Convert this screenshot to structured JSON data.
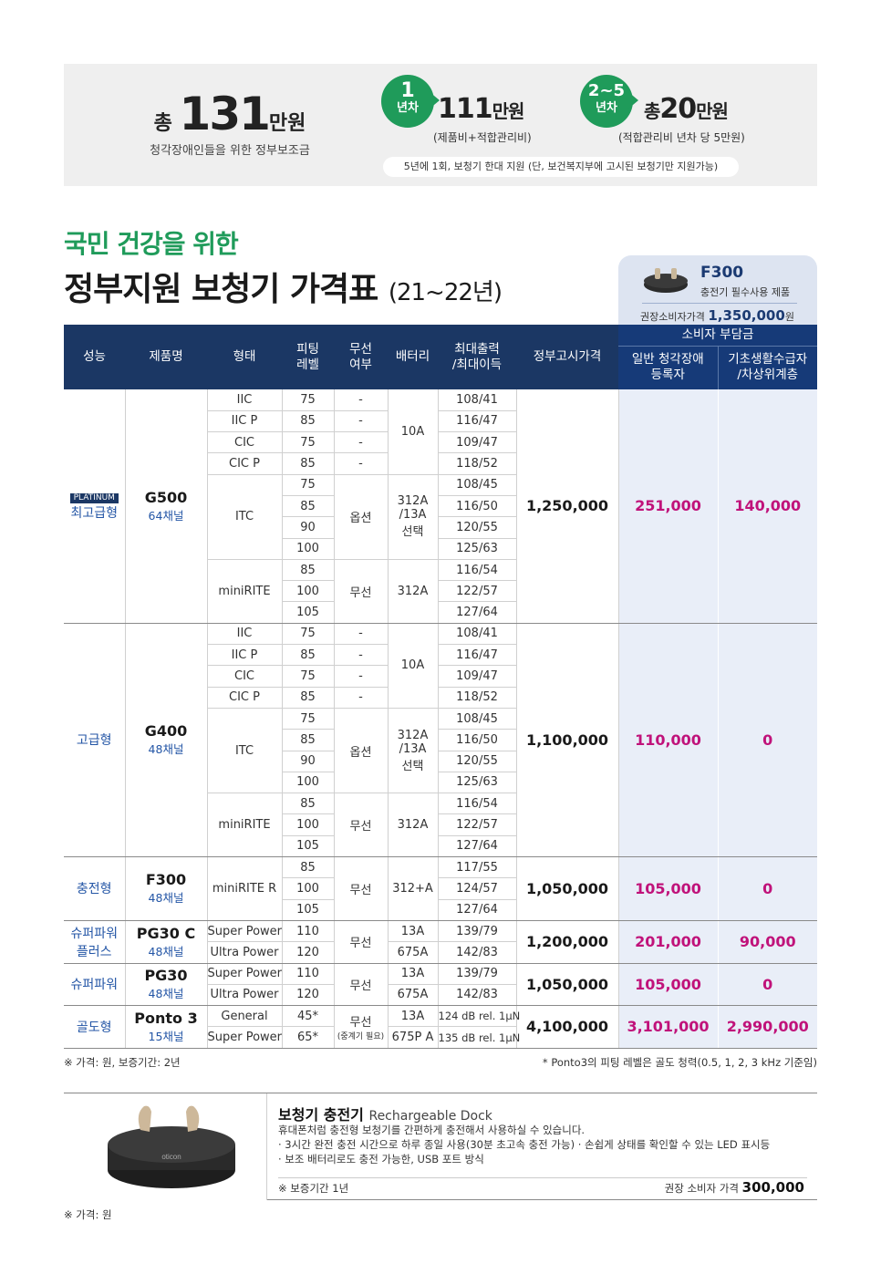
{
  "banner": {
    "total_prefix": "총",
    "total_num": "131",
    "total_unit": "만원",
    "total_sub": "청각장애인들을 위한 정부보조금",
    "y1_num": "1",
    "y1_label": "년차",
    "y1_amount": "111",
    "y1_unit": "만원",
    "y1_note": "(제품비+적합관리비)",
    "y2_num": "2~5",
    "y2_label": "년차",
    "y2_prefix": "총",
    "y2_amount": "20",
    "y2_unit": "만원",
    "y2_note": "(적합관리비 년차 당 5만원)",
    "pill": "5년에 1회, 보청기 한대 지원 (단, 보건복지부에 고시된 보청기만 지원가능)"
  },
  "title": {
    "line1": "국민 건강을 위한",
    "line2": "정부지원 보청기 가격표",
    "years": "(21~22년)"
  },
  "promo": {
    "name": "F300",
    "desc": "충전기 필수사용 제품",
    "price_label": "권장소비자가격",
    "price": "1,350,000",
    "price_unit": "원"
  },
  "table": {
    "headers": {
      "perf": "성능",
      "product": "제품명",
      "type": "형태",
      "fitting": "피팅\n레벨",
      "wireless": "무선\n여부",
      "battery": "배터리",
      "maxout": "최대출력\n/최대이득",
      "gov": "정부고시가격",
      "consumer": "소비자 부담금",
      "general": "일반 청각장애\n등록자",
      "basic": "기초생활수급자\n/차상위계층"
    },
    "g500": {
      "badge": "PLATINUM",
      "perf": "최고급형",
      "name": "G500",
      "channels": "64채널",
      "gov": "1,250,000",
      "general": "251,000",
      "basic": "140,000",
      "rows": [
        {
          "type": "IIC",
          "fit": "75",
          "wl": "-",
          "out": "108/41"
        },
        {
          "type": "IIC P",
          "fit": "85",
          "wl": "-",
          "out": "116/47"
        },
        {
          "type": "CIC",
          "fit": "75",
          "wl": "-",
          "out": "109/47"
        },
        {
          "type": "CIC P",
          "fit": "85",
          "wl": "-",
          "out": "118/52"
        },
        {
          "fit": "75",
          "out": "108/45"
        },
        {
          "fit": "85",
          "out": "116/50"
        },
        {
          "fit": "90",
          "out": "120/55"
        },
        {
          "fit": "100",
          "out": "125/63"
        },
        {
          "fit": "85",
          "out": "116/54"
        },
        {
          "fit": "100",
          "out": "122/57"
        },
        {
          "fit": "105",
          "out": "127/64"
        }
      ],
      "bat_10a": "10A",
      "itc": "ITC",
      "itc_wl": "옵션",
      "itc_bat": "312A\n/13A\n선택",
      "minirite": "miniRITE",
      "minirite_wl": "무선",
      "minirite_bat": "312A"
    },
    "g400": {
      "perf": "고급형",
      "name": "G400",
      "channels": "48채널",
      "gov": "1,100,000",
      "general": "110,000",
      "basic": "0",
      "rows": [
        {
          "type": "IIC",
          "fit": "75",
          "wl": "-",
          "out": "108/41"
        },
        {
          "type": "IIC P",
          "fit": "85",
          "wl": "-",
          "out": "116/47"
        },
        {
          "type": "CIC",
          "fit": "75",
          "wl": "-",
          "out": "109/47"
        },
        {
          "type": "CIC P",
          "fit": "85",
          "wl": "-",
          "out": "118/52"
        },
        {
          "fit": "75",
          "out": "108/45"
        },
        {
          "fit": "85",
          "out": "116/50"
        },
        {
          "fit": "90",
          "out": "120/55"
        },
        {
          "fit": "100",
          "out": "125/63"
        },
        {
          "fit": "85",
          "out": "116/54"
        },
        {
          "fit": "100",
          "out": "122/57"
        },
        {
          "fit": "105",
          "out": "127/64"
        }
      ],
      "bat_10a": "10A",
      "itc": "ITC",
      "itc_wl": "옵션",
      "itc_bat": "312A\n/13A\n선택",
      "minirite": "miniRITE",
      "minirite_wl": "무선",
      "minirite_bat": "312A"
    },
    "f300": {
      "perf": "충전형",
      "name": "F300",
      "channels": "48채널",
      "type": "miniRITE R",
      "wl": "무선",
      "bat": "312+A",
      "gov": "1,050,000",
      "general": "105,000",
      "basic": "0",
      "rows": [
        {
          "fit": "85",
          "out": "117/55"
        },
        {
          "fit": "100",
          "out": "124/57"
        },
        {
          "fit": "105",
          "out": "127/64"
        }
      ]
    },
    "pg30c": {
      "perf": "슈퍼파워\n플러스",
      "name": "PG30 C",
      "channels": "48채널",
      "wl": "무선",
      "gov": "1,200,000",
      "general": "201,000",
      "basic": "90,000",
      "rows": [
        {
          "type": "Super Power",
          "fit": "110",
          "bat": "13A",
          "out": "139/79"
        },
        {
          "type": "Ultra Power",
          "fit": "120",
          "bat": "675A",
          "out": "142/83"
        }
      ]
    },
    "pg30": {
      "perf": "슈퍼파워",
      "name": "PG30",
      "channels": "48채널",
      "wl": "무선",
      "gov": "1,050,000",
      "general": "105,000",
      "basic": "0",
      "rows": [
        {
          "type": "Super Power",
          "fit": "110",
          "bat": "13A",
          "out": "139/79"
        },
        {
          "type": "Ultra Power",
          "fit": "120",
          "bat": "675A",
          "out": "142/83"
        }
      ]
    },
    "ponto": {
      "perf": "골도형",
      "name": "Ponto 3",
      "channels": "15채널",
      "wl": "무선",
      "wl_note": "(중계기 필요)",
      "gov": "4,100,000",
      "general": "3,101,000",
      "basic": "2,990,000",
      "rows": [
        {
          "type": "General",
          "fit": "45*",
          "bat": "13A",
          "out": "124 dB rel. 1μN"
        },
        {
          "type": "Super Power",
          "fit": "65*",
          "bat": "675P A",
          "out": "135 dB rel. 1μN"
        }
      ]
    }
  },
  "footnotes": {
    "left": "※ 가격: 원, 보증기간: 2년",
    "right": "* Ponto3의 피팅 레벨은 골도 청력(0.5, 1, 2, 3 kHz 기준임)"
  },
  "charger": {
    "title": "보청기 충전기",
    "title_en": "Rechargeable Dock",
    "brand": "oticon",
    "desc1": "휴대폰처럼 충전형 보청기를 간편하게 충전해서 사용하실 수 있습니다.",
    "desc2": "· 3시간 완전 충전 시간으로 하루 종일 사용(30분 초고속 충전 가능)  · 손쉽게 상태를 확인할 수 있는 LED 표시등",
    "desc3": "· 보조 배터리로도 충전 가능한, USB 포트 방식",
    "warranty": "※ 보증기간 1년",
    "price_label": "권장 소비자 가격",
    "price": "300,000"
  },
  "footer_note": "※ 가격: 원",
  "colors": {
    "green": "#1f9b5a",
    "navy": "#1b3764",
    "pink": "#c0127a",
    "light_blue": "#e9eef8"
  }
}
